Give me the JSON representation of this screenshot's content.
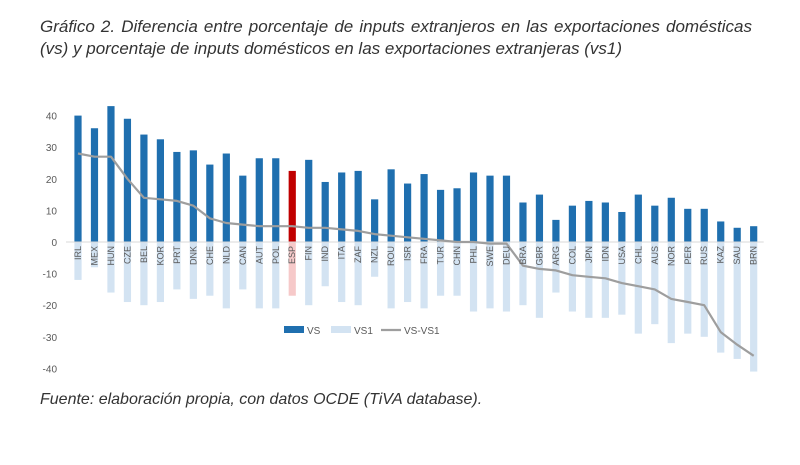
{
  "title": "Gráfico 2. Diferencia entre porcentaje de inputs extranjeros en las exportaciones domésticas (vs) y porcentaje de inputs domésticos en las exportaciones extranjeras (vs1)",
  "caption": "Fuente: elaboración propia, con datos OCDE (TiVA database).",
  "colors": {
    "vs": "#1f6faf",
    "vs_highlight": "#c00000",
    "vs1": "#d3e3f2",
    "vs1_highlight": "#f6c9c9",
    "diff": "#9e9e9e",
    "grid": "#d9d9d9",
    "axis_text": "#595959"
  },
  "chart_data": {
    "type": "bar",
    "categories": [
      "IRL",
      "MEX",
      "HUN",
      "CZE",
      "BEL",
      "KOR",
      "PRT",
      "DNK",
      "CHE",
      "NLD",
      "CAN",
      "AUT",
      "POL",
      "ESP",
      "FIN",
      "IND",
      "ITA",
      "ZAF",
      "NZL",
      "ROU",
      "ISR",
      "FRA",
      "TUR",
      "CHN",
      "PHL",
      "SWE",
      "DEU",
      "BRA",
      "GBR",
      "ARG",
      "COL",
      "JPN",
      "IDN",
      "USA",
      "CHL",
      "AUS",
      "NOR",
      "PER",
      "RUS",
      "KAZ",
      "SAU",
      "BRN"
    ],
    "highlight": "ESP",
    "series": [
      {
        "name": "VS",
        "kind": "bar",
        "values": [
          40,
          36,
          43,
          39,
          34,
          32.5,
          28.5,
          29,
          24.5,
          28,
          21,
          26.5,
          26.5,
          22.5,
          26,
          19,
          22,
          22.5,
          13.5,
          23,
          18.5,
          21.5,
          16.5,
          17,
          22,
          21,
          21,
          12.5,
          15,
          7,
          11.5,
          13,
          12.5,
          9.5,
          15,
          11.5,
          14,
          10.5,
          10.5,
          6.5,
          4.5,
          5
        ]
      },
      {
        "name": "VS1",
        "kind": "bar",
        "values": [
          -12,
          -8,
          -16,
          -19,
          -20,
          -19,
          -15,
          -18,
          -17,
          -21,
          -15,
          -21,
          -21,
          -17,
          -20,
          -14,
          -19,
          -20,
          -11,
          -21,
          -19,
          -21,
          -17,
          -17,
          -22,
          -21,
          -22,
          -20,
          -24,
          -16,
          -22,
          -24,
          -24,
          -23,
          -29,
          -26,
          -32,
          -29,
          -30,
          -35,
          -37,
          -41
        ]
      },
      {
        "name": "VS-VS1",
        "kind": "line",
        "values": [
          28,
          27,
          27,
          20,
          14,
          13.5,
          13,
          11.5,
          7.5,
          6,
          5.5,
          5,
          5,
          5,
          4.5,
          4.5,
          4,
          3.5,
          2.5,
          2,
          1.5,
          1,
          0.5,
          0,
          0,
          -0.5,
          -0.5,
          -7.5,
          -8.5,
          -9,
          -10.5,
          -11,
          -11.5,
          -13,
          -14,
          -15,
          -18,
          -19,
          -20,
          -28.5,
          -32.5,
          -36
        ]
      }
    ],
    "yticks": [
      40,
      30,
      20,
      10,
      0,
      -10,
      -20,
      -30,
      -40
    ],
    "ylim": [
      -40,
      45
    ],
    "grid": false,
    "legend_position": "bottom-center"
  }
}
